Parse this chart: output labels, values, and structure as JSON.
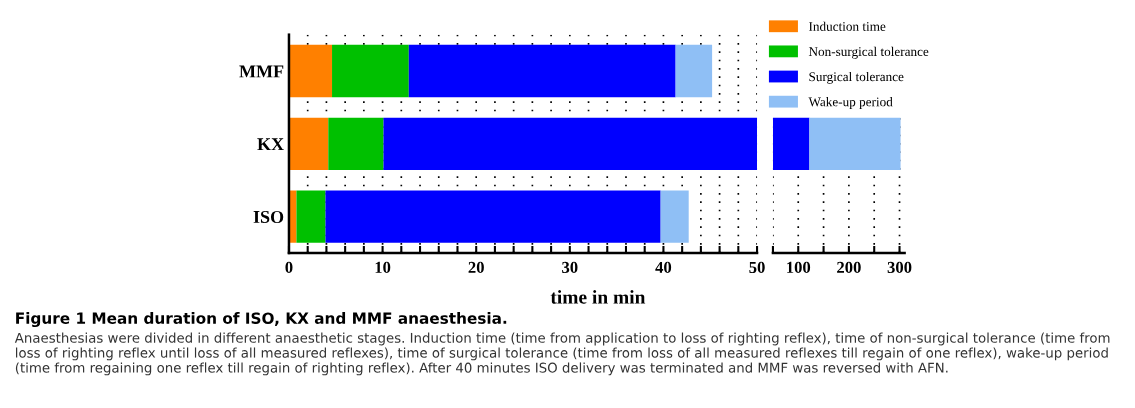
{
  "chart_data": [
    {
      "type": "bar",
      "orientation": "horizontal",
      "stacked": true,
      "title": "Figure 1 Mean duration of ISO, KX and MMF anaesthesia.",
      "xlabel": "time in min",
      "categories": [
        "MMF",
        "KX",
        "ISO"
      ],
      "series": [
        {
          "name": "Induction time",
          "color": "#ff8000",
          "values": [
            4.6,
            4.2,
            0.8
          ]
        },
        {
          "name": "Non-surgical tolerance",
          "color": "#00c000",
          "values": [
            8.2,
            5.9,
            3.1
          ]
        },
        {
          "name": "Surgical tolerance",
          "color": "#0000ff",
          "values": [
            28.5,
            39.9,
            35.8
          ]
        },
        {
          "name": "Wake-up period",
          "color": "#8fbff5",
          "values": [
            3.9,
            null,
            3.0
          ]
        }
      ],
      "xlim": [
        0,
        50
      ],
      "legend": "top right",
      "xticks": [
        0,
        {
          "value": 2,
          "label": null
        },
        {
          "value": 4,
          "label": null
        },
        {
          "value": 6,
          "label": null
        },
        {
          "value": 8,
          "label": null
        },
        10,
        {
          "value": 12,
          "label": null
        },
        {
          "value": 14,
          "label": null
        },
        {
          "value": 16,
          "label": null
        },
        {
          "value": 18,
          "label": null
        },
        20,
        {
          "value": 22,
          "label": null
        },
        {
          "value": 24,
          "label": null
        },
        {
          "value": 26,
          "label": null
        },
        {
          "value": 28,
          "label": null
        },
        30,
        {
          "value": 32,
          "label": null
        },
        {
          "value": 34,
          "label": null
        },
        {
          "value": 36,
          "label": null
        },
        {
          "value": 38,
          "label": null
        },
        40,
        {
          "value": 42,
          "label": null
        },
        {
          "value": 44,
          "label": null
        },
        {
          "value": 46,
          "label": null
        },
        {
          "value": 48,
          "label": null
        },
        50
      ],
      "grid": "x",
      "annotations": [
        "Anaesthesias were divided in different anaesthetic stages. Induction time (time from application to loss of righting reflex), time of non-surgical tolerance (time from loss of righting reflex until loss of all measured reflexes), time of surgical tolerance (time from loss of all measured reflexes till regain of one reflex), wake-up period (time from regaining one reflex till regain of righting reflex). After 40 minutes ISO delivery was terminated and MMF was reversed with AFN."
      ]
    },
    {
      "type": "bar",
      "orientation": "horizontal",
      "categories": [
        null,
        null,
        null
      ],
      "series": [
        {
          "color": "#0000ff",
          "base": [
            null,
            50,
            null
          ],
          "values": [
            null,
            72,
            null
          ]
        },
        {
          "color": "#8fbff5",
          "base": [
            null,
            122,
            null
          ],
          "values": [
            null,
            180,
            null
          ]
        }
      ],
      "xlim": [
        50,
        310
      ],
      "xticks": [
        {
          "value": 50,
          "label": null
        },
        100,
        {
          "value": 150,
          "label": null
        },
        200,
        {
          "value": 250,
          "label": null
        },
        300
      ],
      "grid": "x",
      "tick_labels": "x"
    }
  ]
}
